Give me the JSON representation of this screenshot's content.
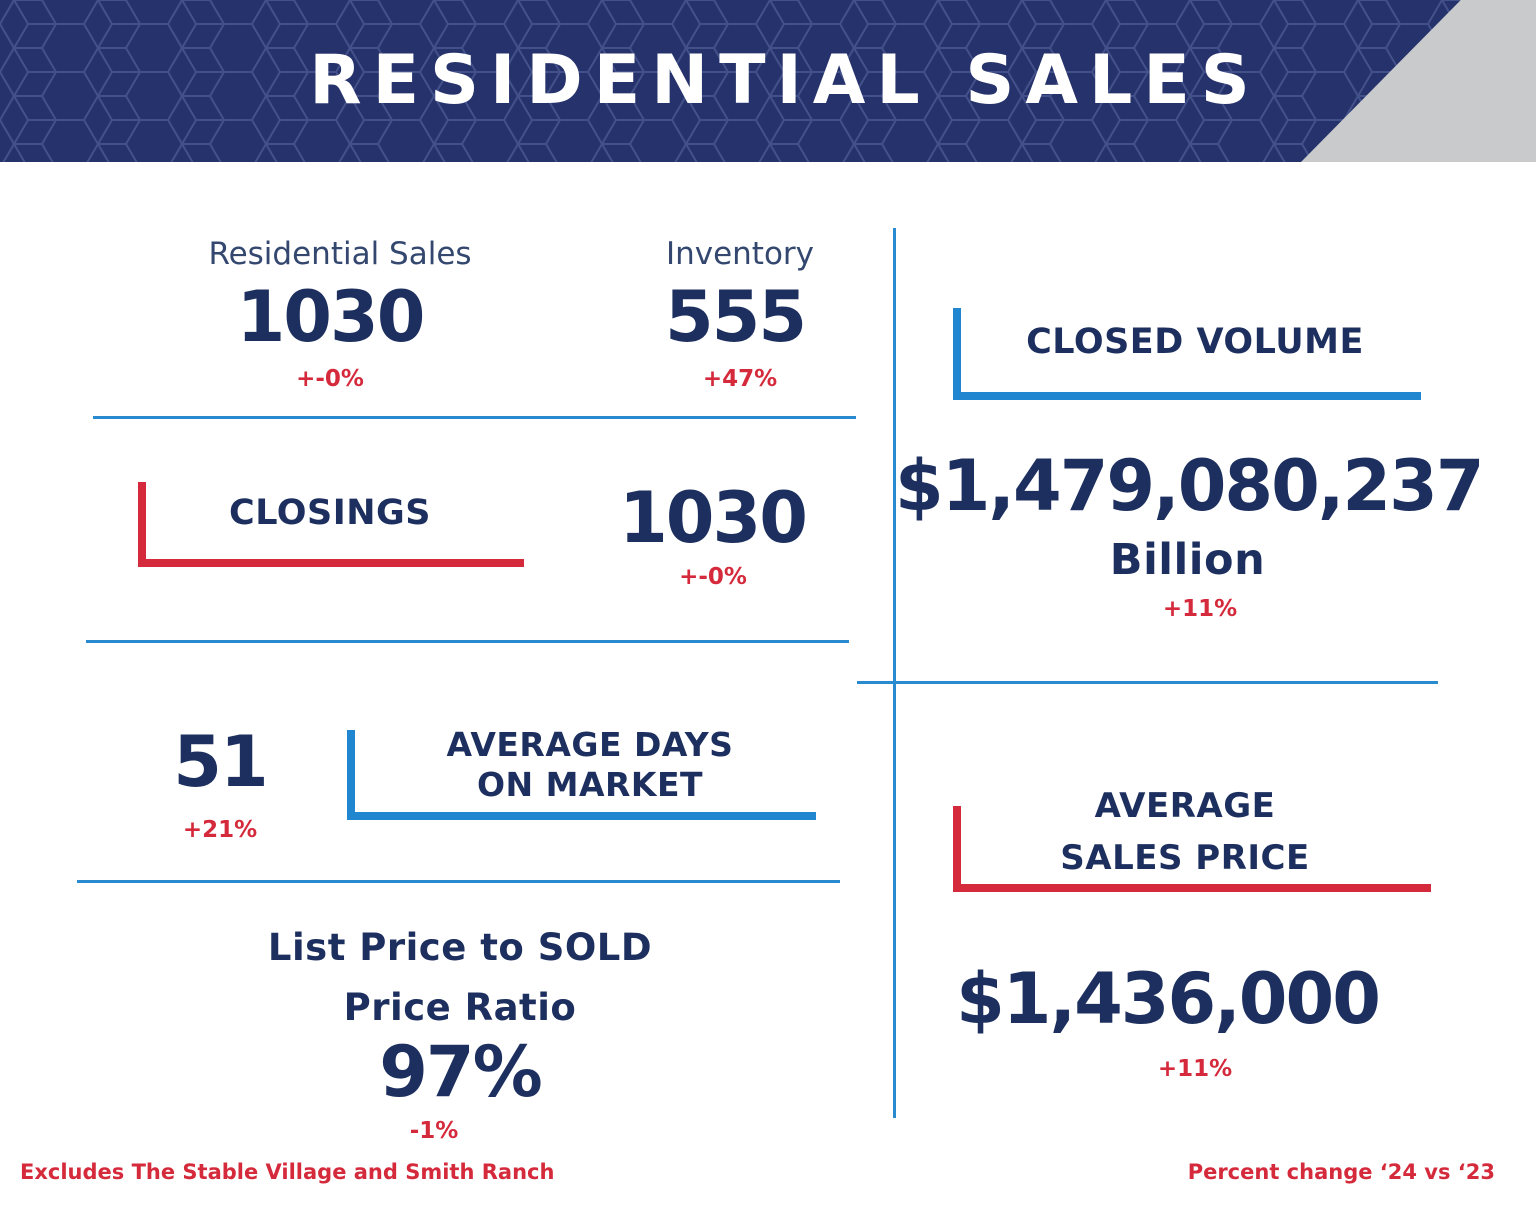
{
  "header": {
    "title": "RESIDENTIAL SALES"
  },
  "residential_sales": {
    "label": "Residential Sales",
    "value": "1030",
    "change": "+-0%"
  },
  "inventory": {
    "label": "Inventory",
    "value": "555",
    "change": "+47%"
  },
  "closings": {
    "label": "CLOSINGS",
    "value": "1030",
    "change": "+-0%"
  },
  "closed_volume": {
    "label": "CLOSED VOLUME",
    "value": "$1,479,080,237",
    "unit": "Billion",
    "change": "+11%"
  },
  "days_on_market": {
    "label_line1": "AVERAGE DAYS",
    "label_line2": "ON MARKET",
    "value": "51",
    "change": "+21%"
  },
  "average_sales_price": {
    "label_line1": "AVERAGE",
    "label_line2": "SALES PRICE",
    "value": "$1,436,000",
    "change": "+11%"
  },
  "price_ratio": {
    "label_line1": "List Price to SOLD",
    "label_line2": "Price Ratio",
    "value": "97%",
    "change": "-1%"
  },
  "footer": {
    "left_note": "Excludes The Stable Village and Smith Ranch",
    "right_note": "Percent change ‘24 vs ‘23"
  },
  "colors": {
    "navy": "#1c2f5e",
    "banner": "#26326b",
    "red": "#d42a3b",
    "blue": "#1f86cf",
    "gray": "#c9cacc"
  }
}
